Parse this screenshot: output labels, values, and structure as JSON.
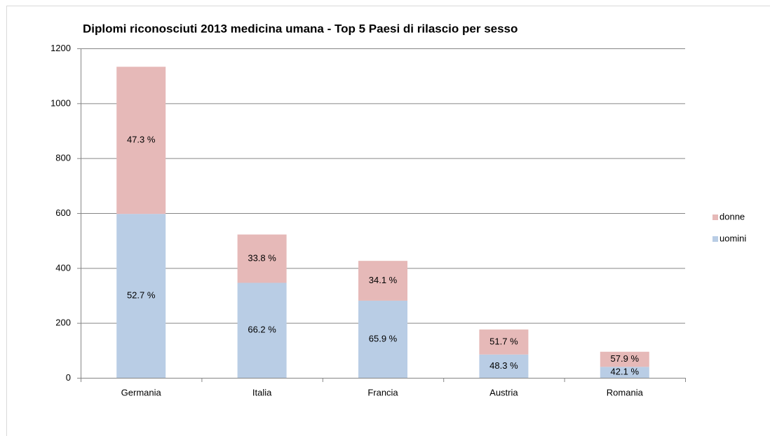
{
  "chart_data": {
    "type": "stacked_bar",
    "title": "Diplomi riconosciuti 2013 medicina umana - Top 5 Paesi di rilascio per sesso",
    "categories": [
      "Germania",
      "Italia",
      "Francia",
      "Austria",
      "Romania"
    ],
    "series": [
      {
        "name": "uomini",
        "color": "#b9cde5",
        "values": [
          597,
          346,
          281,
          85,
          40
        ],
        "percent_labels": [
          "52.7 %",
          "66.2 %",
          "65.9 %",
          "48.3 %",
          "42.1 %"
        ]
      },
      {
        "name": "donne",
        "color": "#e6b9b8",
        "values": [
          536,
          176,
          145,
          91,
          55
        ],
        "percent_labels": [
          "47.3 %",
          "33.8 %",
          "34.1 %",
          "51.7 %",
          "57.9 %"
        ]
      }
    ],
    "ylim": [
      0,
      1200
    ],
    "yticks": [
      0,
      200,
      400,
      600,
      800,
      1000,
      1200
    ],
    "grid": true,
    "legend": "right"
  }
}
